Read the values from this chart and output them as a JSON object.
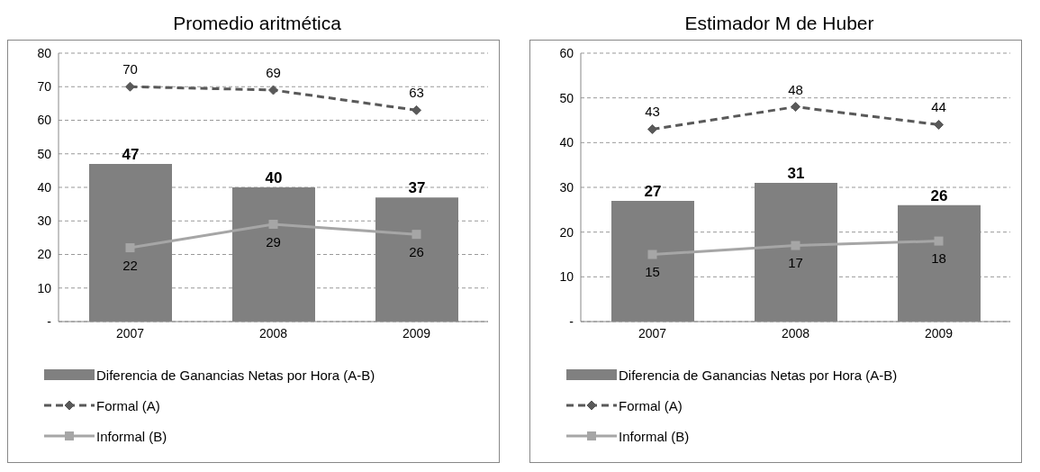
{
  "chart_data": [
    {
      "type": "bar",
      "title": "Promedio aritmética",
      "categories": [
        "2007",
        "2008",
        "2009"
      ],
      "ylim": [
        0,
        80
      ],
      "yticks": [
        {
          "value": 0,
          "label": "-"
        },
        10,
        20,
        30,
        40,
        50,
        60,
        70,
        80
      ],
      "grid": "y",
      "legend": "bottom",
      "data_labels": true,
      "series": [
        {
          "name": "Diferencia de Ganancias  Netas por Hora (A-B)",
          "color": "#808080",
          "values": [
            47,
            40,
            37
          ]
        },
        {
          "name": "Formal (A)",
          "type": "line",
          "color": "#595959",
          "line_style": "dashed",
          "marker": "diamond",
          "values": [
            70,
            69,
            63
          ]
        },
        {
          "name": "Informal (B)",
          "type": "line",
          "color": "#a6a6a6",
          "line_style": "solid",
          "marker": "square",
          "values": [
            22,
            29,
            26
          ]
        }
      ]
    },
    {
      "type": "bar",
      "title": "Estimador M de Huber",
      "categories": [
        "2007",
        "2008",
        "2009"
      ],
      "ylim": [
        0,
        60
      ],
      "yticks": [
        {
          "value": 0,
          "label": "-"
        },
        10,
        20,
        30,
        40,
        50,
        60
      ],
      "grid": "y",
      "legend": "bottom",
      "data_labels": true,
      "series": [
        {
          "name": "Diferencia de Ganancias  Netas por Hora (A-B)",
          "color": "#808080",
          "values": [
            27,
            31,
            26
          ]
        },
        {
          "name": "Formal (A)",
          "type": "line",
          "color": "#595959",
          "line_style": "dashed",
          "marker": "diamond",
          "values": [
            43,
            48,
            44
          ]
        },
        {
          "name": "Informal (B)",
          "type": "line",
          "color": "#a6a6a6",
          "line_style": "solid",
          "marker": "square",
          "values": [
            15,
            17,
            18
          ]
        }
      ]
    }
  ]
}
